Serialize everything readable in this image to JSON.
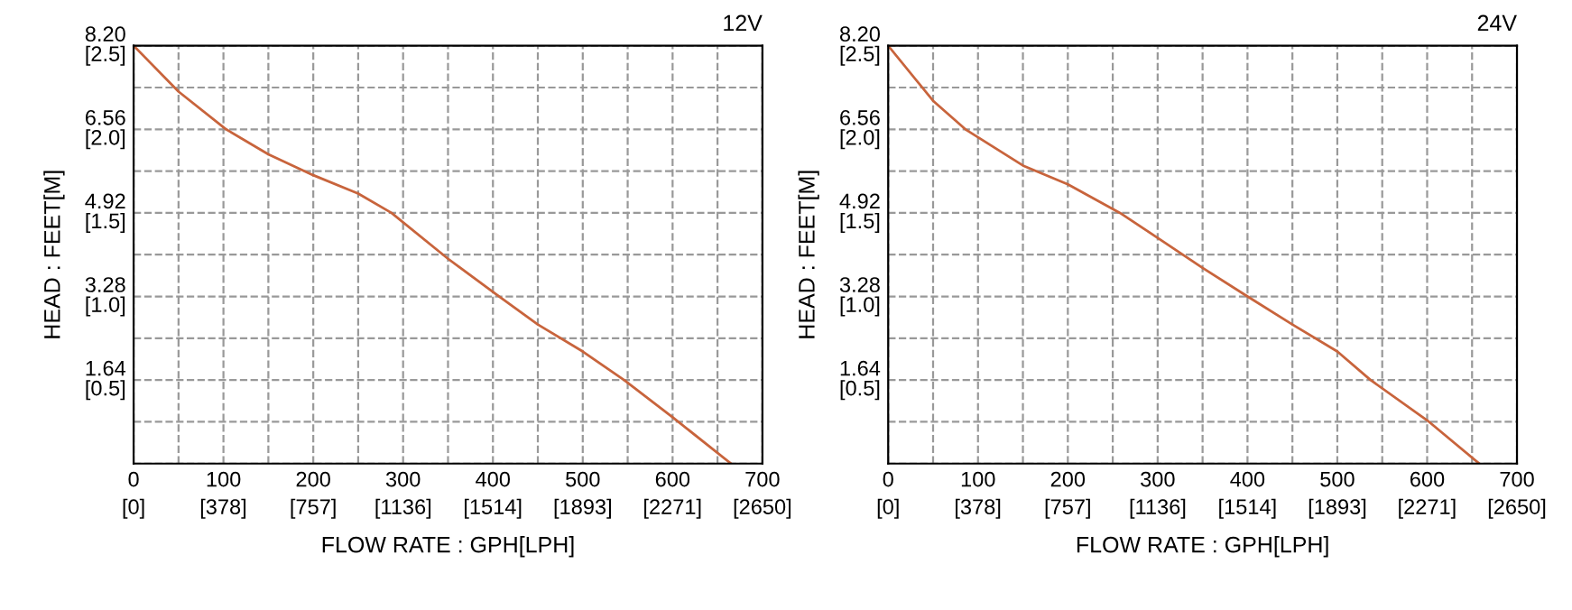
{
  "chart_data": [
    {
      "type": "line",
      "title": "12V",
      "xlabel": "FLOW RATE : GPH[LPH]",
      "ylabel": "HEAD : FEET[M]",
      "xlim": [
        0,
        700
      ],
      "ylim": [
        0,
        8.2
      ],
      "xticks": [
        0,
        {
          "value": 50,
          "label": null
        },
        100,
        {
          "value": 150,
          "label": null
        },
        200,
        {
          "value": 250,
          "label": null
        },
        300,
        {
          "value": 350,
          "label": null
        },
        400,
        {
          "value": 450,
          "label": null
        },
        500,
        {
          "value": 550,
          "label": null
        },
        600,
        {
          "value": 650,
          "label": null
        },
        700
      ],
      "yticks": [
        {
          "value": 0,
          "label": null
        },
        {
          "value": 0.82,
          "label": null
        },
        {
          "value": 1.64,
          "label": "1.64"
        },
        {
          "value": 2.46,
          "label": null
        },
        {
          "value": 3.28,
          "label": "3.28"
        },
        {
          "value": 4.1,
          "label": null
        },
        {
          "value": 4.92,
          "label": "4.92"
        },
        {
          "value": 5.74,
          "label": null
        },
        {
          "value": 6.56,
          "label": "6.56"
        },
        {
          "value": 7.38,
          "label": null
        },
        {
          "value": 8.2,
          "label": "8.20"
        }
      ],
      "x2lim": [
        0,
        2650
      ],
      "x2ticks": [
        {
          "value": 0,
          "label": "[0]"
        },
        {
          "value": 378,
          "label": "[378]"
        },
        {
          "value": 757,
          "label": "[757]"
        },
        {
          "value": 1136,
          "label": "[1136]"
        },
        {
          "value": 1514,
          "label": "[1514]"
        },
        {
          "value": 1893,
          "label": "[1893]"
        },
        {
          "value": 2271,
          "label": "[2271]"
        },
        {
          "value": 2650,
          "label": "[2650]"
        }
      ],
      "y2lim": [
        0,
        2.5
      ],
      "y2ticks": [
        {
          "value": 0.5,
          "label": "[0.5]"
        },
        {
          "value": 1.0,
          "label": "[1.0]"
        },
        {
          "value": 1.5,
          "label": "[1.5]"
        },
        {
          "value": 2.0,
          "label": "[2.0]"
        },
        {
          "value": 2.5,
          "label": "[2.5]"
        }
      ],
      "grid": true,
      "marker": "none",
      "line_style": "solid",
      "series": [
        {
          "color": "#c8643c",
          "x": [
            0,
            50,
            103,
            150,
            200,
            250,
            287,
            350,
            407,
            450,
            500,
            546,
            600,
            665
          ],
          "values": [
            8.2,
            7.3,
            6.56,
            6.07,
            5.66,
            5.3,
            4.92,
            4.02,
            3.28,
            2.73,
            2.2,
            1.64,
            0.91,
            0
          ]
        }
      ]
    },
    {
      "type": "line",
      "title": "24V",
      "xlabel": "FLOW RATE : GPH[LPH]",
      "ylabel": "HEAD : FEET[M]",
      "xlim": [
        0,
        700
      ],
      "ylim": [
        0,
        8.2
      ],
      "xticks": [
        0,
        {
          "value": 50,
          "label": null
        },
        100,
        {
          "value": 150,
          "label": null
        },
        200,
        {
          "value": 250,
          "label": null
        },
        300,
        {
          "value": 350,
          "label": null
        },
        400,
        {
          "value": 450,
          "label": null
        },
        500,
        {
          "value": 550,
          "label": null
        },
        600,
        {
          "value": 650,
          "label": null
        },
        700
      ],
      "yticks": [
        {
          "value": 0,
          "label": null
        },
        {
          "value": 0.82,
          "label": null
        },
        {
          "value": 1.64,
          "label": "1.64"
        },
        {
          "value": 2.46,
          "label": null
        },
        {
          "value": 3.28,
          "label": "3.28"
        },
        {
          "value": 4.1,
          "label": null
        },
        {
          "value": 4.92,
          "label": "4.92"
        },
        {
          "value": 5.74,
          "label": null
        },
        {
          "value": 6.56,
          "label": "6.56"
        },
        {
          "value": 7.38,
          "label": null
        },
        {
          "value": 8.2,
          "label": "8.20"
        }
      ],
      "x2lim": [
        0,
        2650
      ],
      "x2ticks": [
        {
          "value": 0,
          "label": "[0]"
        },
        {
          "value": 378,
          "label": "[378]"
        },
        {
          "value": 757,
          "label": "[757]"
        },
        {
          "value": 1136,
          "label": "[1136]"
        },
        {
          "value": 1514,
          "label": "[1514]"
        },
        {
          "value": 1893,
          "label": "[1893]"
        },
        {
          "value": 2271,
          "label": "[2271]"
        },
        {
          "value": 2650,
          "label": "[2650]"
        }
      ],
      "y2lim": [
        0,
        2.5
      ],
      "y2ticks": [
        {
          "value": 0.5,
          "label": "[0.5]"
        },
        {
          "value": 1.0,
          "label": "[1.0]"
        },
        {
          "value": 1.5,
          "label": "[1.5]"
        },
        {
          "value": 2.0,
          "label": "[2.0]"
        },
        {
          "value": 2.5,
          "label": "[2.5]"
        }
      ],
      "grid": true,
      "marker": "none",
      "line_style": "solid",
      "series": [
        {
          "color": "#c8643c",
          "x": [
            0,
            50,
            86,
            150,
            200,
            258,
            300,
            350,
            400,
            450,
            500,
            537,
            600,
            658
          ],
          "values": [
            8.2,
            7.12,
            6.56,
            5.85,
            5.48,
            4.92,
            4.43,
            3.84,
            3.28,
            2.73,
            2.2,
            1.64,
            0.85,
            0
          ]
        }
      ]
    }
  ]
}
